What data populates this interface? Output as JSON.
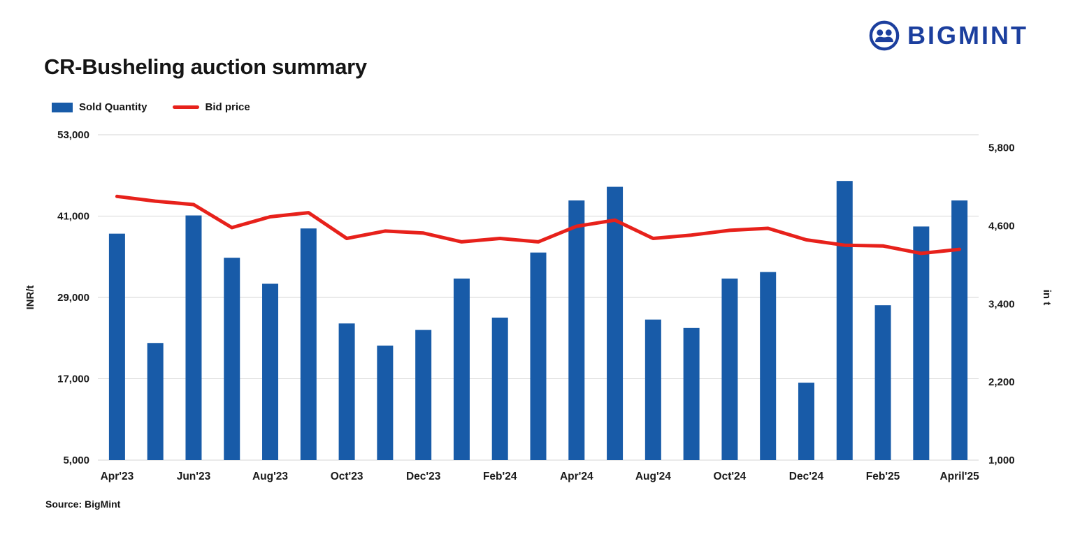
{
  "logo": {
    "text": "BIGMINT",
    "color": "#1C3F9E"
  },
  "title": "CR-Busheling auction summary",
  "legend": [
    {
      "label": "Sold Quantity",
      "type": "bar",
      "color": "#185BA8"
    },
    {
      "label": "Bid price",
      "type": "line",
      "color": "#E7211B"
    }
  ],
  "source": "Source: BigMint",
  "colors": {
    "bar": "#185BA8",
    "line": "#E7211B",
    "gridline": "#D6D6D6",
    "text": "#1A1A1A",
    "brand": "#1C3F9E"
  },
  "chart_data": {
    "type": "bar",
    "subtype": "bar+line dual-axis combo",
    "title": "CR-Busheling auction summary",
    "grid": "horizontal",
    "legend_position": "top-left",
    "categories": [
      "Apr'23",
      "",
      "Jun'23",
      "",
      "Aug'23",
      "",
      "Oct'23",
      "",
      "Dec'23",
      "",
      "Feb'24",
      "",
      "Apr'24",
      "",
      "Aug'24",
      "",
      "Oct'24",
      "",
      "Dec'24",
      "",
      "Feb'25",
      "",
      "April'25"
    ],
    "series": [
      {
        "name": "Sold Quantity",
        "type": "bar",
        "axis": "right",
        "color": "#185BA8",
        "values": [
          4480,
          2800,
          4760,
          4110,
          3710,
          4560,
          3100,
          2760,
          3000,
          3790,
          3190,
          4190,
          4990,
          5200,
          3160,
          3030,
          3790,
          3890,
          2190,
          5290,
          3380,
          4590,
          4990
        ]
      },
      {
        "name": "Bid price",
        "type": "line",
        "axis": "left",
        "color": "#E7211B",
        "values": [
          43900,
          43200,
          42700,
          39300,
          40900,
          41500,
          37700,
          38800,
          38500,
          37200,
          37700,
          37200,
          39500,
          40400,
          37700,
          38200,
          38900,
          39200,
          37500,
          36700,
          36600,
          35500,
          36100
        ]
      }
    ],
    "left_axis": {
      "label": "INR/t",
      "ticks": [
        5000,
        17000,
        29000,
        41000,
        53000
      ],
      "range": [
        5000,
        53000
      ]
    },
    "right_axis": {
      "label": "in t",
      "ticks": [
        1000,
        2200,
        3400,
        4600,
        5800
      ],
      "range": [
        1000,
        6000
      ]
    }
  }
}
